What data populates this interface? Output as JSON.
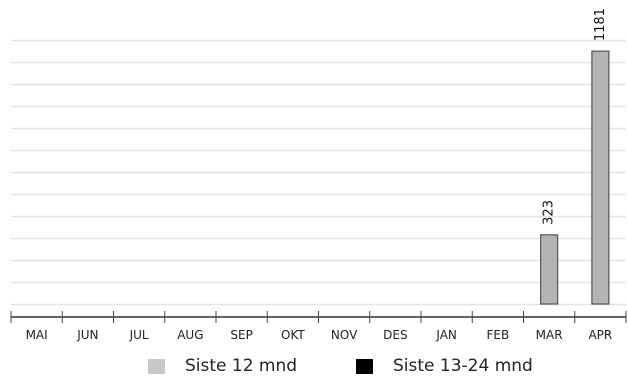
{
  "chart_data": {
    "type": "bar",
    "categories": [
      "MAI",
      "JUN",
      "JUL",
      "AUG",
      "SEP",
      "OKT",
      "NOV",
      "DES",
      "JAN",
      "FEB",
      "MAR",
      "APR"
    ],
    "series": [
      {
        "name": "Siste 12 mnd",
        "color": "#b3b3b3",
        "values": [
          null,
          null,
          null,
          null,
          null,
          null,
          null,
          null,
          null,
          null,
          323,
          1181
        ]
      },
      {
        "name": "Siste 13-24 mnd",
        "color": "#000000",
        "values": [
          null,
          null,
          null,
          null,
          null,
          null,
          null,
          null,
          null,
          null,
          null,
          null
        ]
      }
    ],
    "data_labels": [
      "",
      "",
      "",
      "",
      "",
      "",
      "",
      "",
      "",
      "",
      "323",
      "1181"
    ],
    "ylim": [
      0,
      1233
    ],
    "grid": true,
    "legend_position": "bottom"
  }
}
